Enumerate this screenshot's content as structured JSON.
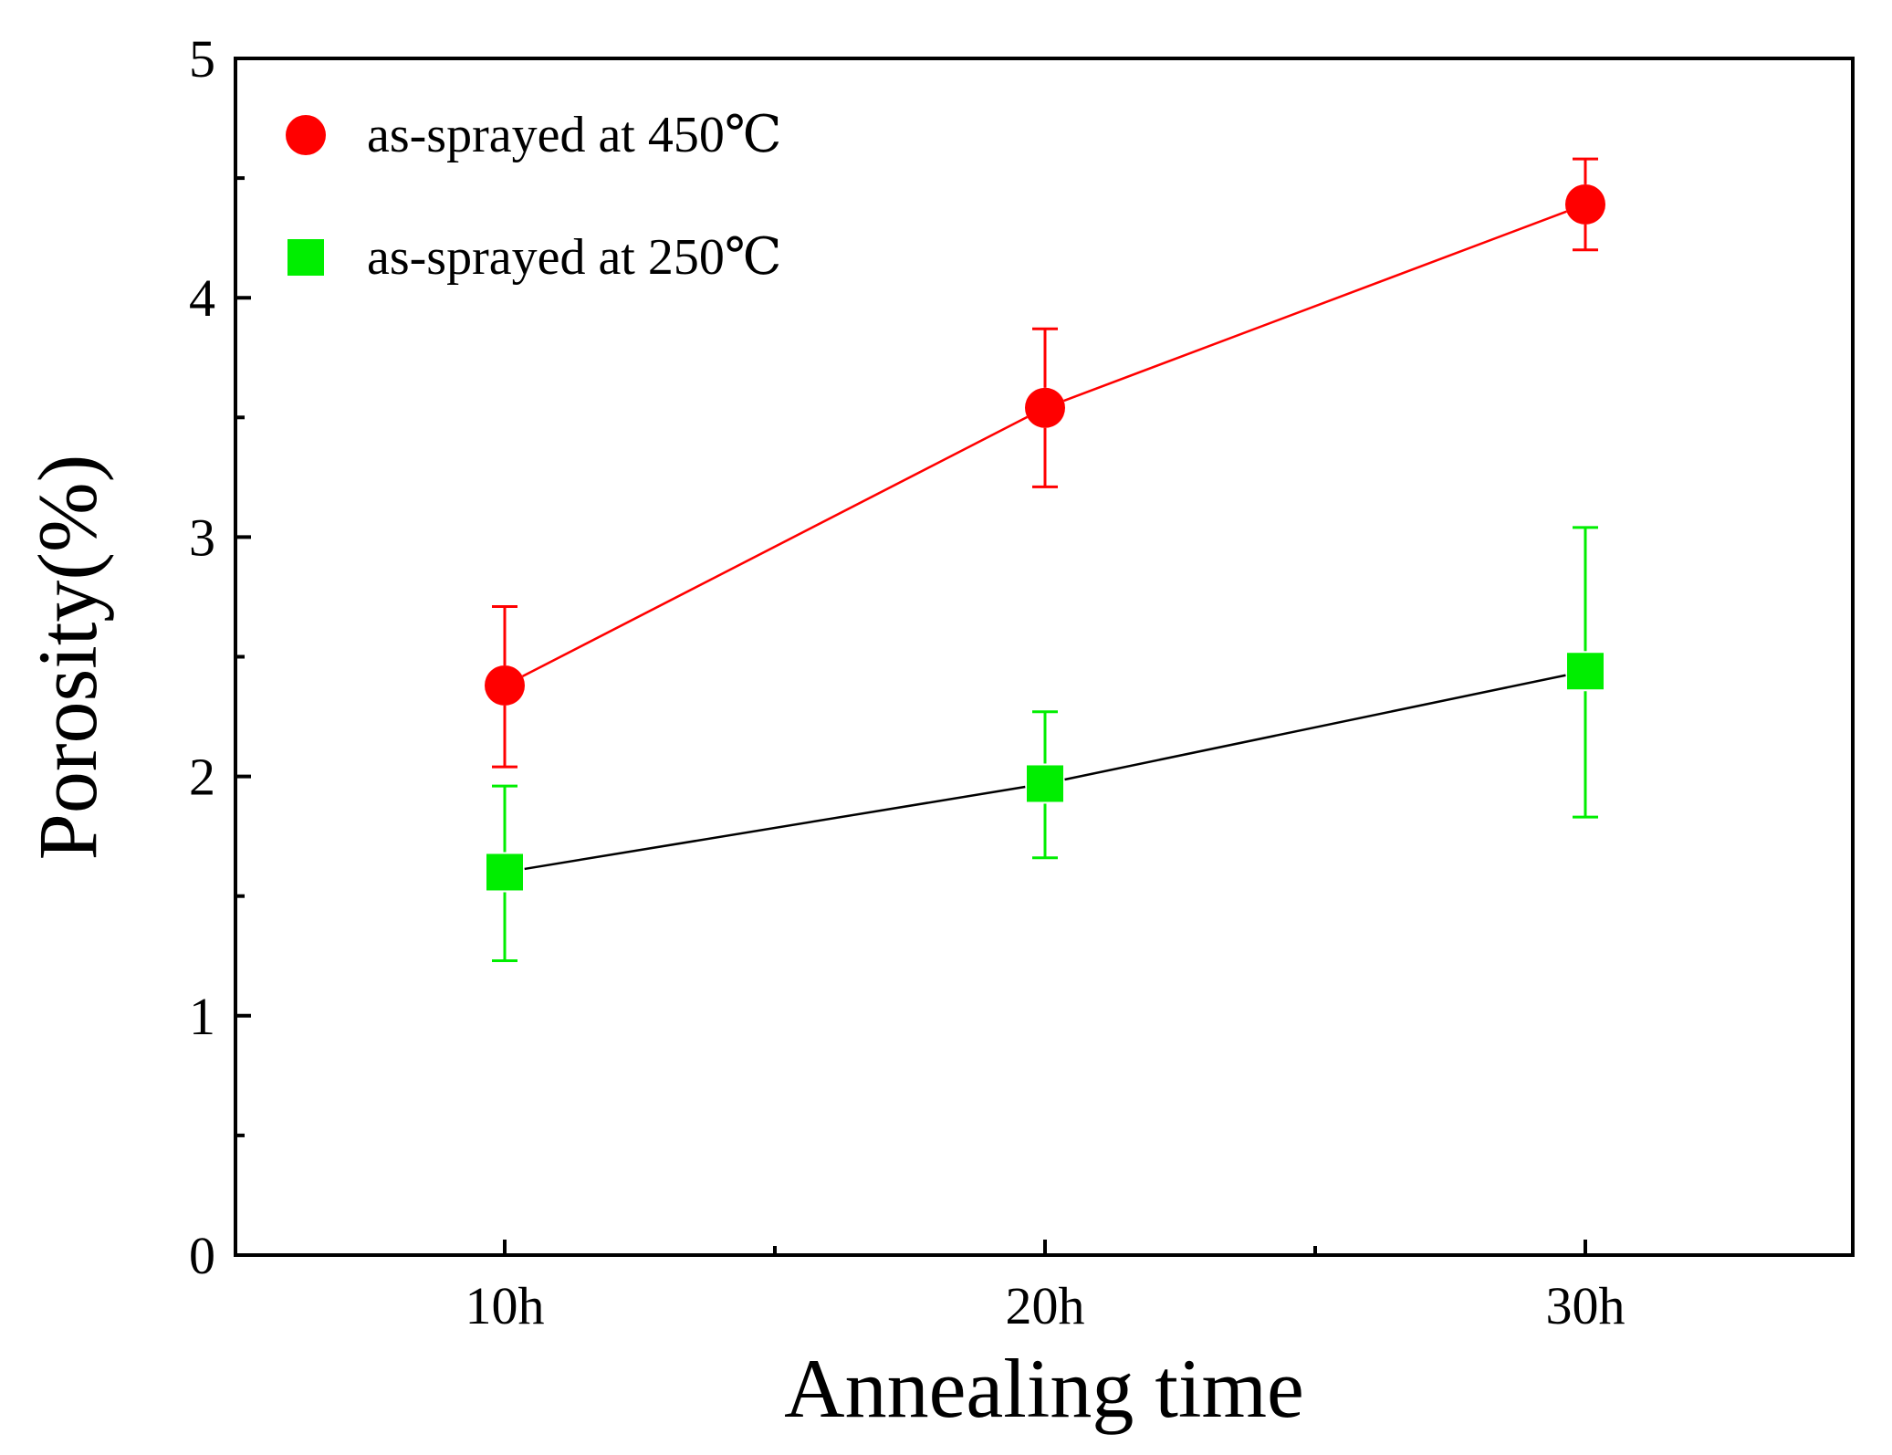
{
  "chart_data": {
    "type": "scatter",
    "title": "",
    "xlabel": "Annealing time",
    "ylabel": "Porosity(%)",
    "categories": [
      "10h",
      "20h",
      "30h"
    ],
    "ylim": [
      0,
      5
    ],
    "yticks": [
      "0",
      "1",
      "2",
      "3",
      "4",
      "5"
    ],
    "grid": false,
    "legend_position": "top-left",
    "series": [
      {
        "name": "as-sprayed at 450℃",
        "marker": "circle",
        "color": "#ff0000",
        "line_color": "#ff0000",
        "values": [
          2.38,
          3.54,
          4.39
        ],
        "err_upper": [
          2.71,
          3.87,
          4.58
        ],
        "err_lower": [
          2.04,
          3.21,
          4.2
        ]
      },
      {
        "name": "as-sprayed at 250℃",
        "marker": "square",
        "color": "#00ee00",
        "line_color": "#000000",
        "values": [
          1.6,
          1.97,
          2.44
        ],
        "err_upper": [
          1.96,
          2.27,
          3.04
        ],
        "err_lower": [
          1.23,
          1.66,
          1.83
        ]
      }
    ]
  }
}
